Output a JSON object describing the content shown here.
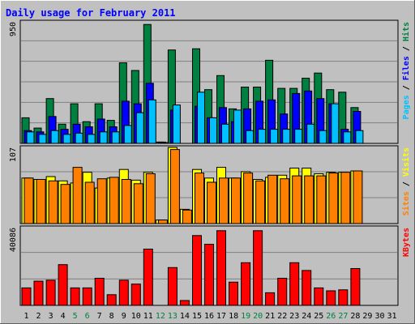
{
  "title": "Daily usage for February 2011",
  "colors": {
    "background": "#c0c0c0",
    "title": "#0000ff",
    "hits": "#008040",
    "files": "#0000ff",
    "pages": "#00c0ff",
    "visits": "#ffff00",
    "sites": "#ff8000",
    "kbytes": "#ff0000",
    "weekend": "#008040",
    "weekday": "#000000",
    "grid": "#808080"
  },
  "chart_data": [
    {
      "type": "bar",
      "panel": "top",
      "max_label": "950",
      "ylim": [
        0,
        950
      ],
      "right_labels": [
        {
          "text": "Pages",
          "color": "#00c0ff"
        },
        {
          "text": " / ",
          "color": "#000000"
        },
        {
          "text": "Files",
          "color": "#0000ff"
        },
        {
          "text": " / ",
          "color": "#000000"
        },
        {
          "text": "Hits",
          "color": "#008040"
        }
      ],
      "series": [
        {
          "name": "Hits",
          "color": "#008040",
          "values": [
            200,
            120,
            350,
            150,
            310,
            170,
            310,
            180,
            630,
            570,
            930,
            10,
            730,
            0,
            740,
            420,
            530,
            270,
            440,
            440,
            650,
            430,
            430,
            510,
            550,
            420,
            400,
            280
          ]
        },
        {
          "name": "Files",
          "color": "#0000ff",
          "values": [
            100,
            90,
            210,
            110,
            150,
            130,
            190,
            130,
            330,
            310,
            470,
            10,
            260,
            0,
            290,
            200,
            280,
            170,
            270,
            330,
            340,
            230,
            390,
            410,
            350,
            310,
            110,
            250
          ]
        },
        {
          "name": "Pages",
          "color": "#00c0ff",
          "values": [
            90,
            70,
            100,
            70,
            80,
            70,
            90,
            90,
            140,
            240,
            340,
            5,
            300,
            0,
            400,
            200,
            150,
            260,
            100,
            110,
            110,
            110,
            110,
            150,
            100,
            310,
            90,
            100
          ]
        }
      ]
    },
    {
      "type": "bar",
      "panel": "middle",
      "max_label": "107",
      "ylim": [
        0,
        107
      ],
      "right_labels": [
        {
          "text": "Sites",
          "color": "#ff8000"
        },
        {
          "text": " / ",
          "color": "#000000"
        },
        {
          "text": "Visits",
          "color": "#ffff00"
        }
      ],
      "series": [
        {
          "name": "Visits",
          "color": "#ffff00",
          "values": [
            64,
            62,
            66,
            60,
            57,
            72,
            50,
            64,
            76,
            61,
            72,
            5,
            107,
            20,
            76,
            64,
            79,
            64,
            73,
            62,
            65,
            68,
            78,
            78,
            70,
            72,
            72,
            74
          ]
        },
        {
          "name": "Sites",
          "color": "#ff8000",
          "values": [
            64,
            62,
            60,
            55,
            79,
            58,
            63,
            65,
            62,
            56,
            70,
            5,
            104,
            19,
            71,
            58,
            64,
            64,
            71,
            60,
            68,
            63,
            67,
            67,
            67,
            71,
            72,
            74
          ]
        }
      ]
    },
    {
      "type": "bar",
      "panel": "bottom",
      "max_label": "40086",
      "ylim": [
        0,
        40086
      ],
      "right_labels": [
        {
          "text": "KBytes",
          "color": "#ff0000"
        }
      ],
      "series": [
        {
          "name": "KBytes",
          "color": "#ff0000",
          "values": [
            9000,
            12500,
            13000,
            21000,
            9000,
            9000,
            14000,
            5500,
            13000,
            11000,
            29000,
            0,
            19500,
            2500,
            36000,
            31500,
            38500,
            12000,
            22000,
            38500,
            6500,
            14000,
            22000,
            18000,
            9000,
            7500,
            8000,
            19000
          ]
        }
      ]
    }
  ],
  "x_labels": [
    "1",
    "2",
    "3",
    "4",
    "5",
    "6",
    "7",
    "8",
    "9",
    "10",
    "11",
    "12",
    "13",
    "14",
    "15",
    "16",
    "17",
    "18",
    "19",
    "20",
    "21",
    "22",
    "23",
    "24",
    "25",
    "26",
    "27",
    "28",
    "29",
    "30",
    "31"
  ],
  "weekend_days": [
    5,
    6,
    12,
    13,
    19,
    20,
    26,
    27
  ]
}
